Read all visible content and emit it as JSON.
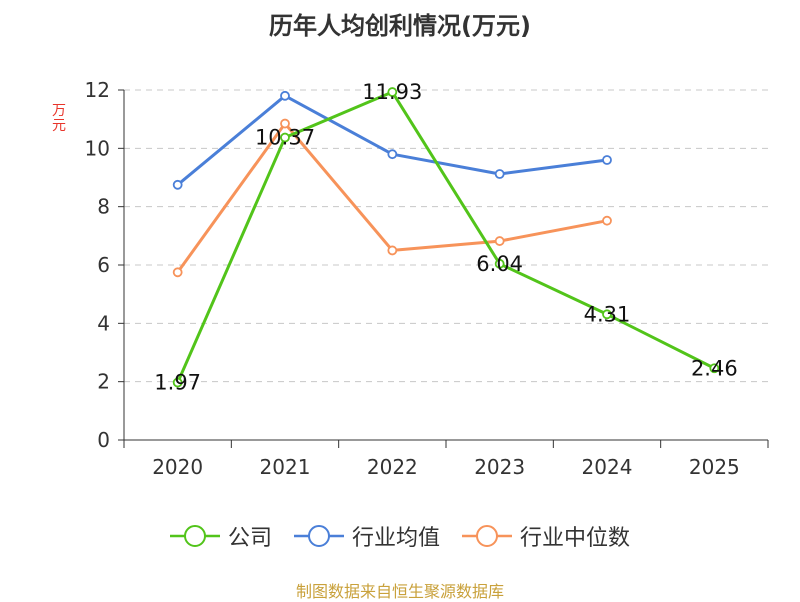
{
  "chart_data": {
    "type": "line",
    "title": "历年人均创利情况(万元)",
    "ylabel": "万元",
    "xlabel": "",
    "categories": [
      "2020",
      "2021",
      "2022",
      "2023",
      "2024",
      "2025"
    ],
    "ylim": [
      0,
      12
    ],
    "yticks": [
      0,
      2,
      4,
      6,
      8,
      10,
      12
    ],
    "grid": true,
    "legend_position": "bottom",
    "series": [
      {
        "name": "公司",
        "color": "#52c41a",
        "values": [
          1.97,
          10.37,
          11.93,
          6.04,
          4.31,
          2.46
        ],
        "show_labels": true
      },
      {
        "name": "行业均值",
        "color": "#4a7fd8",
        "values": [
          8.75,
          11.8,
          9.8,
          9.12,
          9.6,
          null
        ],
        "show_labels": false
      },
      {
        "name": "行业中位数",
        "color": "#f7935a",
        "values": [
          5.75,
          10.85,
          6.5,
          6.82,
          7.52,
          null
        ],
        "show_labels": false
      }
    ]
  },
  "footer": {
    "source": "制图数据来自恒生聚源数据库"
  }
}
